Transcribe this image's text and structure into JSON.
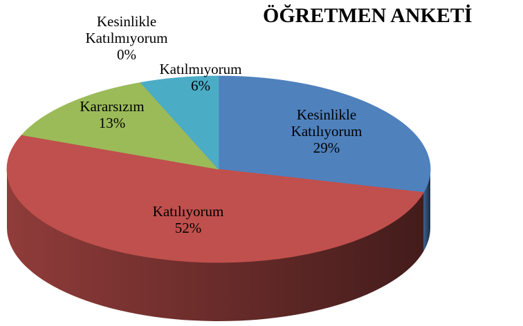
{
  "chart_data": {
    "type": "pie3d",
    "title": "ÖĞRETMEN ANKETİ",
    "categories": [
      "Kesinlikle Katılıyorum",
      "Katılıyorum",
      "Kararsızım",
      "Kesinlikle Katılmıyorum",
      "Katılmıyorum"
    ],
    "values": [
      29,
      52,
      13,
      0,
      6
    ],
    "value_labels": [
      "29%",
      "52%",
      "13%",
      "0%",
      "6%"
    ],
    "colors": [
      "#4f81bd",
      "#c0504d",
      "#9bbb59",
      "#8064a2",
      "#4bacc6"
    ]
  }
}
